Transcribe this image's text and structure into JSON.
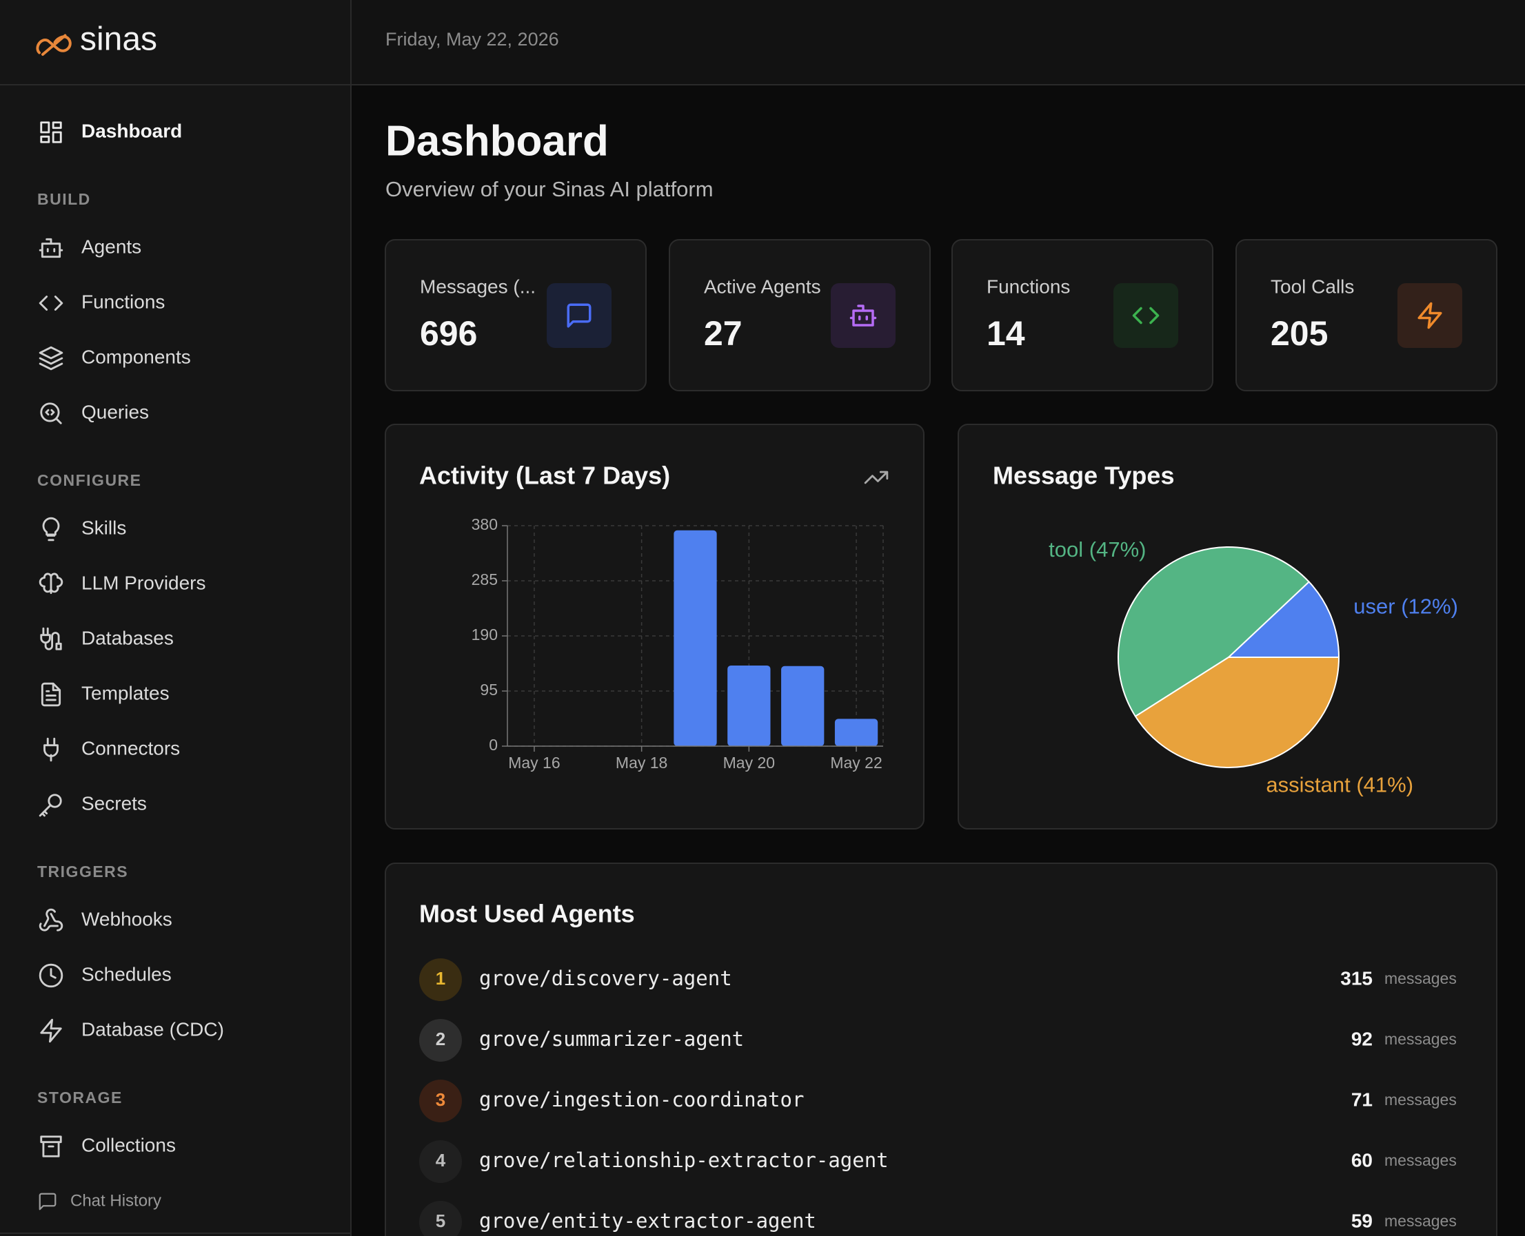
{
  "header": {
    "logo": "sinas",
    "date": "Friday, May 22, 2026"
  },
  "sidebar": {
    "dashboard": "Dashboard",
    "sections": [
      {
        "title": "BUILD",
        "items": [
          "Agents",
          "Functions",
          "Components",
          "Queries"
        ]
      },
      {
        "title": "CONFIGURE",
        "items": [
          "Skills",
          "LLM Providers",
          "Databases",
          "Templates",
          "Connectors",
          "Secrets"
        ]
      },
      {
        "title": "TRIGGERS",
        "items": [
          "Webhooks",
          "Schedules",
          "Database (CDC)"
        ]
      },
      {
        "title": "STORAGE",
        "items": [
          "Collections"
        ]
      }
    ],
    "footer": "Chat History"
  },
  "page": {
    "title": "Dashboard",
    "subtitle": "Overview of your Sinas AI platform"
  },
  "stats": [
    {
      "label": "Messages (...",
      "value": "696"
    },
    {
      "label": "Active Agents",
      "value": "27"
    },
    {
      "label": "Functions",
      "value": "14"
    },
    {
      "label": "Tool Calls",
      "value": "205"
    }
  ],
  "chart_data": [
    {
      "type": "bar",
      "title": "Activity (Last 7 Days)",
      "categories": [
        "May 16",
        null,
        "May 18",
        null,
        "May 20",
        null,
        "May 22"
      ],
      "values": [
        0,
        0,
        0,
        372,
        139,
        138,
        47
      ],
      "color": "#4f80ef",
      "ylim": [
        0,
        380
      ],
      "yticks": [
        0,
        95,
        190,
        285,
        380
      ],
      "grid": true
    },
    {
      "type": "pie",
      "title": "Message Types",
      "values": [
        12,
        47,
        41
      ],
      "value_labels": [
        "user (12%)",
        "tool (47%)",
        "assistant (41%)"
      ],
      "colors": [
        "#4f80ef",
        "#54b584",
        "#e8a23c"
      ]
    }
  ],
  "agents": {
    "title": "Most Used Agents",
    "count_label": "messages",
    "rows": [
      {
        "rank": 1,
        "name": "grove/discovery-agent",
        "count": 315
      },
      {
        "rank": 2,
        "name": "grove/summarizer-agent",
        "count": 92
      },
      {
        "rank": 3,
        "name": "grove/ingestion-coordinator",
        "count": 71
      },
      {
        "rank": 4,
        "name": "grove/relationship-extractor-agent",
        "count": 60
      },
      {
        "rank": 5,
        "name": "grove/entity-extractor-agent",
        "count": 59
      }
    ]
  }
}
